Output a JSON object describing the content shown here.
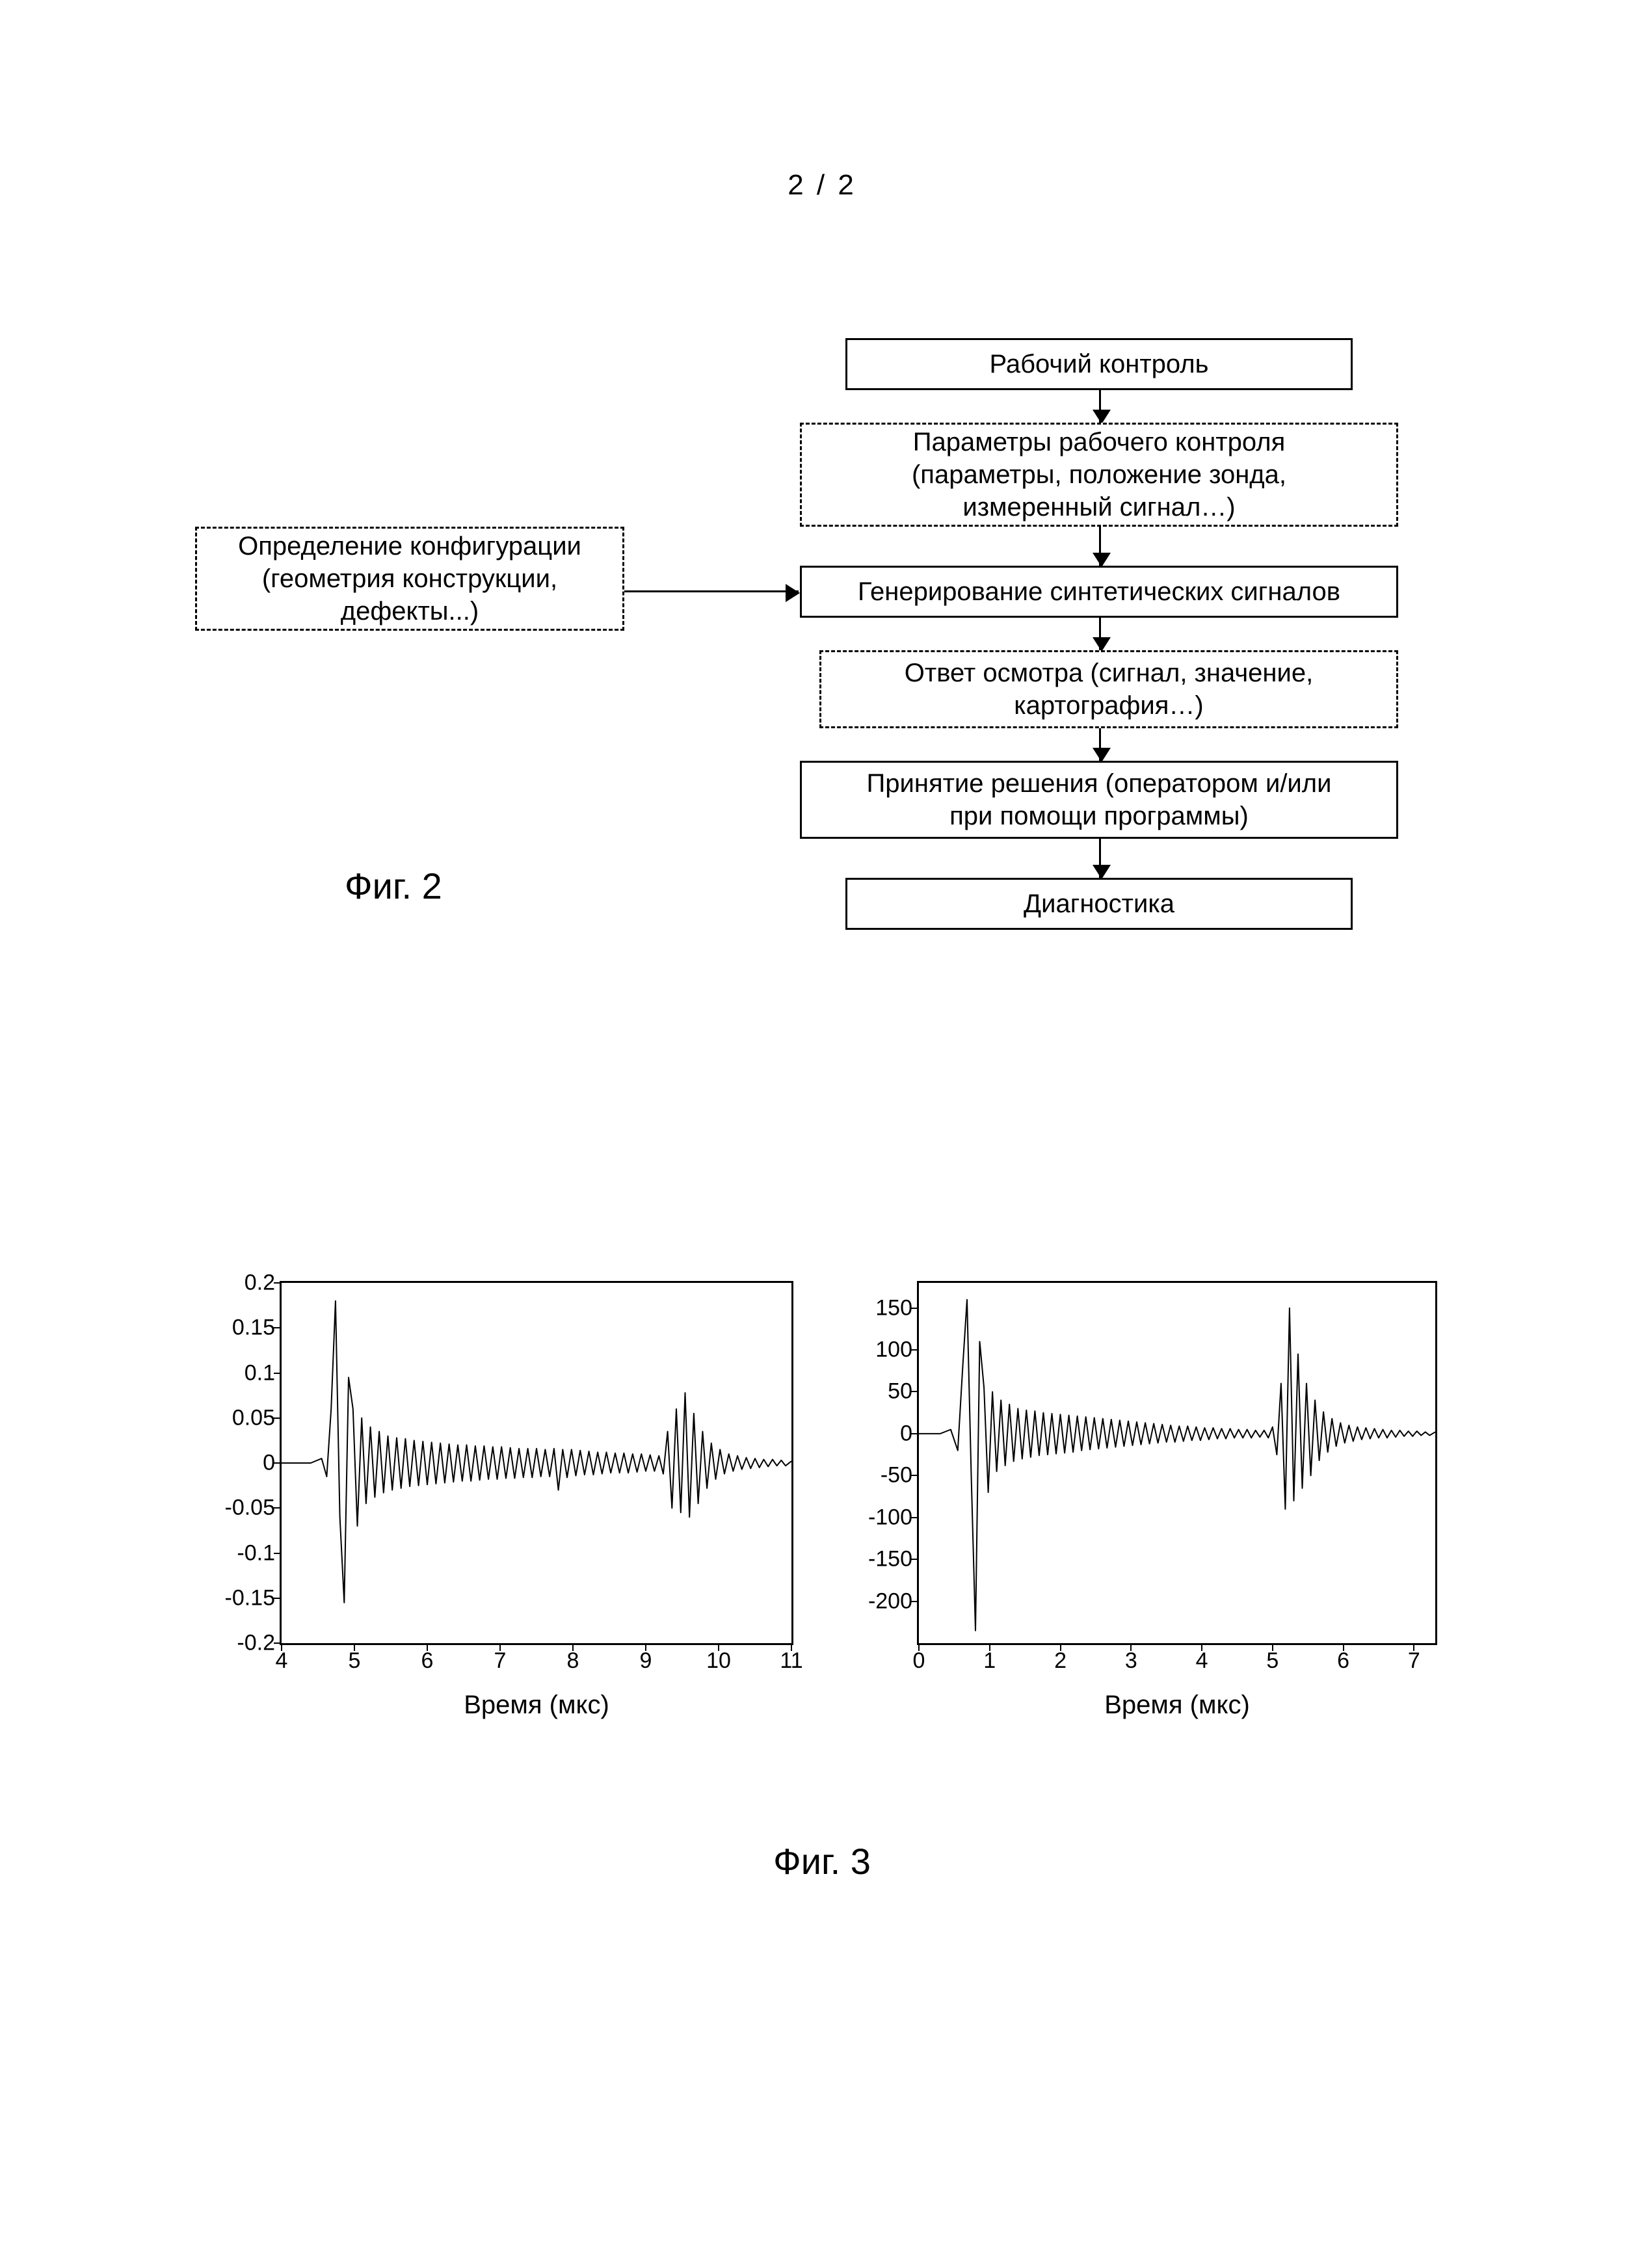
{
  "page_number": "2 / 2",
  "fig2_label": "Фиг. 2",
  "fig3_label": "Фиг. 3",
  "flow": {
    "b1": {
      "text": "Рабочий контроль"
    },
    "b2": {
      "text": "Параметры рабочего контроля\n(параметры, положение зонда,\nизмеренный сигнал…)"
    },
    "b3": {
      "text": "Генерирование синтетических сигналов"
    },
    "b4": {
      "text": "Определение конфигурации\n(геометрия конструкции,\nдефекты...)"
    },
    "b5": {
      "text": "Ответ осмотра (сигнал, значение,\nкартография…)"
    },
    "b6": {
      "text": "Принятие решения (оператором и/или\nпри помощи программы)"
    },
    "b7": {
      "text": "Диагностика"
    }
  },
  "chart_left": {
    "type": "line",
    "xlabel": "Время (мкс)",
    "xlim": [
      4,
      11
    ],
    "xticks": [
      4,
      5,
      6,
      7,
      8,
      9,
      10,
      11
    ],
    "ylim": [
      -0.2,
      0.2
    ],
    "yticks": [
      -0.2,
      -0.15,
      -0.1,
      -0.05,
      0,
      0.05,
      0.1,
      0.15,
      0.2
    ],
    "ytick_labels": [
      "-0.2",
      "-0.15",
      "-0.1",
      "-0.05",
      "0",
      "0.05",
      "0.1",
      "0.15",
      "0.2"
    ],
    "line_color": "#000000",
    "line_width": 2,
    "background_color": "#ffffff",
    "border_color": "#000000",
    "label_fontsize": 40,
    "tick_fontsize": 34,
    "series": [
      [
        4.0,
        0.0
      ],
      [
        4.4,
        0.0
      ],
      [
        4.55,
        0.005
      ],
      [
        4.62,
        -0.015
      ],
      [
        4.68,
        0.06
      ],
      [
        4.74,
        0.18
      ],
      [
        4.8,
        -0.06
      ],
      [
        4.86,
        -0.155
      ],
      [
        4.92,
        0.095
      ],
      [
        4.98,
        0.06
      ],
      [
        5.04,
        -0.07
      ],
      [
        5.1,
        0.05
      ],
      [
        5.16,
        -0.045
      ],
      [
        5.22,
        0.04
      ],
      [
        5.28,
        -0.038
      ],
      [
        5.34,
        0.035
      ],
      [
        5.4,
        -0.033
      ],
      [
        5.46,
        0.03
      ],
      [
        5.52,
        -0.03
      ],
      [
        5.58,
        0.028
      ],
      [
        5.64,
        -0.028
      ],
      [
        5.7,
        0.027
      ],
      [
        5.76,
        -0.026
      ],
      [
        5.82,
        0.025
      ],
      [
        5.88,
        -0.025
      ],
      [
        5.94,
        0.024
      ],
      [
        6.0,
        -0.024
      ],
      [
        6.06,
        0.023
      ],
      [
        6.12,
        -0.023
      ],
      [
        6.18,
        0.022
      ],
      [
        6.24,
        -0.022
      ],
      [
        6.3,
        0.021
      ],
      [
        6.36,
        -0.021
      ],
      [
        6.42,
        0.02
      ],
      [
        6.48,
        -0.02
      ],
      [
        6.54,
        0.02
      ],
      [
        6.6,
        -0.02
      ],
      [
        6.66,
        0.019
      ],
      [
        6.72,
        -0.019
      ],
      [
        6.78,
        0.019
      ],
      [
        6.84,
        -0.018
      ],
      [
        6.9,
        0.018
      ],
      [
        6.96,
        -0.018
      ],
      [
        7.02,
        0.018
      ],
      [
        7.08,
        -0.017
      ],
      [
        7.14,
        0.017
      ],
      [
        7.2,
        -0.017
      ],
      [
        7.26,
        0.016
      ],
      [
        7.32,
        -0.016
      ],
      [
        7.38,
        0.016
      ],
      [
        7.44,
        -0.016
      ],
      [
        7.5,
        0.016
      ],
      [
        7.56,
        -0.015
      ],
      [
        7.62,
        0.015
      ],
      [
        7.68,
        -0.015
      ],
      [
        7.74,
        0.016
      ],
      [
        7.8,
        -0.03
      ],
      [
        7.86,
        0.015
      ],
      [
        7.92,
        -0.016
      ],
      [
        7.98,
        0.015
      ],
      [
        8.04,
        -0.014
      ],
      [
        8.1,
        0.014
      ],
      [
        8.16,
        -0.013
      ],
      [
        8.22,
        0.013
      ],
      [
        8.28,
        -0.013
      ],
      [
        8.34,
        0.012
      ],
      [
        8.4,
        -0.012
      ],
      [
        8.46,
        0.012
      ],
      [
        8.52,
        -0.011
      ],
      [
        8.58,
        0.011
      ],
      [
        8.64,
        -0.011
      ],
      [
        8.7,
        0.011
      ],
      [
        8.76,
        -0.011
      ],
      [
        8.82,
        0.01
      ],
      [
        8.88,
        -0.01
      ],
      [
        8.94,
        0.01
      ],
      [
        9.0,
        -0.009
      ],
      [
        9.06,
        0.009
      ],
      [
        9.12,
        -0.009
      ],
      [
        9.18,
        0.008
      ],
      [
        9.24,
        -0.012
      ],
      [
        9.3,
        0.035
      ],
      [
        9.36,
        -0.05
      ],
      [
        9.42,
        0.06
      ],
      [
        9.48,
        -0.055
      ],
      [
        9.54,
        0.078
      ],
      [
        9.6,
        -0.06
      ],
      [
        9.66,
        0.055
      ],
      [
        9.72,
        -0.045
      ],
      [
        9.78,
        0.035
      ],
      [
        9.84,
        -0.028
      ],
      [
        9.9,
        0.022
      ],
      [
        9.96,
        -0.018
      ],
      [
        10.02,
        0.015
      ],
      [
        10.08,
        -0.012
      ],
      [
        10.14,
        0.01
      ],
      [
        10.2,
        -0.009
      ],
      [
        10.26,
        0.008
      ],
      [
        10.32,
        -0.007
      ],
      [
        10.38,
        0.006
      ],
      [
        10.44,
        -0.006
      ],
      [
        10.5,
        0.005
      ],
      [
        10.56,
        -0.005
      ],
      [
        10.62,
        0.004
      ],
      [
        10.68,
        -0.004
      ],
      [
        10.74,
        0.004
      ],
      [
        10.8,
        -0.003
      ],
      [
        10.86,
        0.003
      ],
      [
        10.92,
        -0.003
      ],
      [
        11.0,
        0.002
      ]
    ]
  },
  "chart_right": {
    "type": "line",
    "xlabel": "Время (мкс)",
    "xlim": [
      0,
      7.3
    ],
    "xticks": [
      0,
      1,
      2,
      3,
      4,
      5,
      6,
      7
    ],
    "ylim": [
      -250,
      180
    ],
    "yticks": [
      -200,
      -150,
      -100,
      -50,
      0,
      50,
      100,
      150
    ],
    "ytick_labels": [
      "-200",
      "-150",
      "-100",
      "-50",
      "0",
      "50",
      "100",
      "150"
    ],
    "line_color": "#000000",
    "line_width": 2,
    "background_color": "#ffffff",
    "border_color": "#000000",
    "label_fontsize": 40,
    "tick_fontsize": 34,
    "series": [
      [
        0.0,
        0
      ],
      [
        0.3,
        0
      ],
      [
        0.45,
        5
      ],
      [
        0.55,
        -20
      ],
      [
        0.62,
        80
      ],
      [
        0.68,
        160
      ],
      [
        0.74,
        -50
      ],
      [
        0.8,
        -235
      ],
      [
        0.86,
        110
      ],
      [
        0.92,
        55
      ],
      [
        0.98,
        -70
      ],
      [
        1.04,
        50
      ],
      [
        1.1,
        -45
      ],
      [
        1.16,
        40
      ],
      [
        1.22,
        -38
      ],
      [
        1.28,
        35
      ],
      [
        1.34,
        -33
      ],
      [
        1.4,
        30
      ],
      [
        1.46,
        -30
      ],
      [
        1.52,
        28
      ],
      [
        1.58,
        -28
      ],
      [
        1.64,
        27
      ],
      [
        1.7,
        -26
      ],
      [
        1.76,
        25
      ],
      [
        1.82,
        -25
      ],
      [
        1.88,
        24
      ],
      [
        1.94,
        -24
      ],
      [
        2.0,
        23
      ],
      [
        2.06,
        -23
      ],
      [
        2.12,
        22
      ],
      [
        2.18,
        -22
      ],
      [
        2.24,
        21
      ],
      [
        2.3,
        -20
      ],
      [
        2.36,
        20
      ],
      [
        2.42,
        -19
      ],
      [
        2.48,
        19
      ],
      [
        2.54,
        -18
      ],
      [
        2.6,
        18
      ],
      [
        2.66,
        -17
      ],
      [
        2.72,
        17
      ],
      [
        2.78,
        -16
      ],
      [
        2.84,
        16
      ],
      [
        2.9,
        -15
      ],
      [
        2.96,
        15
      ],
      [
        3.02,
        -14
      ],
      [
        3.08,
        14
      ],
      [
        3.14,
        -13
      ],
      [
        3.2,
        13
      ],
      [
        3.26,
        -12
      ],
      [
        3.32,
        12
      ],
      [
        3.38,
        -11
      ],
      [
        3.44,
        11
      ],
      [
        3.5,
        -10
      ],
      [
        3.56,
        10
      ],
      [
        3.62,
        -10
      ],
      [
        3.68,
        9
      ],
      [
        3.74,
        -9
      ],
      [
        3.8,
        9
      ],
      [
        3.86,
        -8
      ],
      [
        3.92,
        8
      ],
      [
        3.98,
        -8
      ],
      [
        4.04,
        7
      ],
      [
        4.1,
        -7
      ],
      [
        4.16,
        7
      ],
      [
        4.22,
        -6
      ],
      [
        4.28,
        6
      ],
      [
        4.34,
        -6
      ],
      [
        4.4,
        6
      ],
      [
        4.46,
        -5
      ],
      [
        4.52,
        5
      ],
      [
        4.58,
        -5
      ],
      [
        4.64,
        5
      ],
      [
        4.7,
        -5
      ],
      [
        4.76,
        4
      ],
      [
        4.82,
        -4
      ],
      [
        4.88,
        4
      ],
      [
        4.94,
        -5
      ],
      [
        5.0,
        8
      ],
      [
        5.06,
        -25
      ],
      [
        5.12,
        60
      ],
      [
        5.18,
        -90
      ],
      [
        5.24,
        150
      ],
      [
        5.3,
        -80
      ],
      [
        5.36,
        95
      ],
      [
        5.42,
        -65
      ],
      [
        5.48,
        60
      ],
      [
        5.54,
        -50
      ],
      [
        5.6,
        40
      ],
      [
        5.66,
        -32
      ],
      [
        5.72,
        26
      ],
      [
        5.78,
        -22
      ],
      [
        5.84,
        18
      ],
      [
        5.9,
        -15
      ],
      [
        5.96,
        13
      ],
      [
        6.02,
        -11
      ],
      [
        6.08,
        10
      ],
      [
        6.14,
        -9
      ],
      [
        6.2,
        8
      ],
      [
        6.26,
        -7
      ],
      [
        6.32,
        7
      ],
      [
        6.38,
        -6
      ],
      [
        6.44,
        6
      ],
      [
        6.5,
        -5
      ],
      [
        6.56,
        5
      ],
      [
        6.62,
        -5
      ],
      [
        6.68,
        4
      ],
      [
        6.74,
        -4
      ],
      [
        6.8,
        4
      ],
      [
        6.86,
        -3
      ],
      [
        6.92,
        3
      ],
      [
        6.98,
        -3
      ],
      [
        7.04,
        3
      ],
      [
        7.1,
        -2
      ],
      [
        7.16,
        2
      ],
      [
        7.22,
        -2
      ],
      [
        7.3,
        2
      ]
    ]
  }
}
